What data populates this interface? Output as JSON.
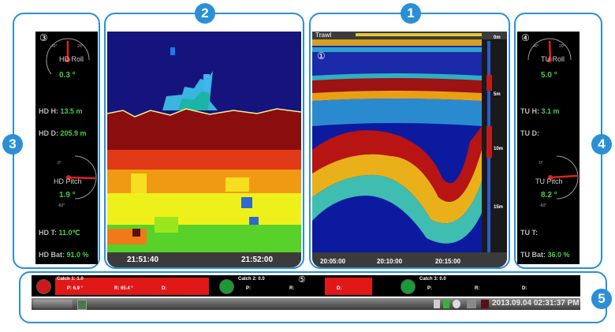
{
  "callouts": {
    "c1": "1",
    "c2": "2",
    "c3": "3",
    "c4": "4",
    "c5": "5"
  },
  "markers": {
    "m1": "①",
    "m3": "③",
    "m4": "④",
    "m5": "⑤"
  },
  "hd": {
    "roll": {
      "label": "HD Roll",
      "value": "0.3 °"
    },
    "pitch": {
      "label": "HD Pitch",
      "value": "1.9 °"
    },
    "h": {
      "label": "HD H:",
      "value": "13.5 m"
    },
    "d": {
      "label": "HD D:",
      "value": "205.9 m"
    },
    "t": {
      "label": "HD T:",
      "value": "11.0℃"
    },
    "bat": {
      "label": "HD Bat:",
      "value": "91.0 %"
    }
  },
  "tu": {
    "roll": {
      "label": "TU Roll",
      "value": "5.0 °"
    },
    "pitch": {
      "label": "TU Pitch",
      "value": "8.2 °"
    },
    "h": {
      "label": "TU H:",
      "value": "3.1 m"
    },
    "d": {
      "label": "TU D:",
      "value": ""
    },
    "t": {
      "label": "TU T:",
      "value": ""
    },
    "bat": {
      "label": "TU Bat:",
      "value": "36.0 %"
    }
  },
  "gauge_ticks": {
    "t1": "40°",
    "t2": "20°",
    "t3": "0°",
    "t4": "-20°",
    "t5": "-40°",
    "t6": "-60°",
    "t7": "60°"
  },
  "trawl_sonar": {
    "times": [
      "21:51:40",
      "21:52:00"
    ]
  },
  "echogram": {
    "times": [
      "20:05:00",
      "20:10:00",
      "20:15:00"
    ],
    "depths": [
      "0m",
      "5m",
      "10m",
      "15m"
    ],
    "top_label": "Trawl"
  },
  "catch": [
    {
      "title": "Catch 1: 1.0",
      "p": "P: 6.9 °",
      "r": "R: 65.4 °",
      "d": "D:",
      "color": "#e01818"
    },
    {
      "title": "Catch 2: 0.0",
      "p": "P:",
      "r": "R:",
      "d": "D:",
      "color": "#1a9a35"
    },
    {
      "title": "Catch 3: 0.0",
      "p": "P:",
      "r": "R:",
      "d": "D:",
      "color": "#1a9a35"
    }
  ],
  "taskbar": {
    "app": "",
    "datetime": "2013.09.04 02:31:37 PM"
  }
}
